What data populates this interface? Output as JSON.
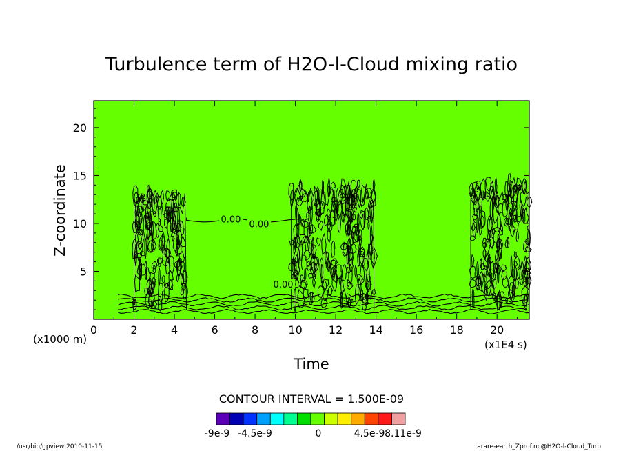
{
  "chart_data": {
    "type": "contour",
    "title": "Turbulence term of H2O-l-Cloud mixing ratio",
    "xlabel": "Time",
    "ylabel": "Z-coordinate",
    "x_unit": "(x1E4 s)",
    "y_unit": "(x1000 m)",
    "xlim": [
      0,
      21.6
    ],
    "ylim": [
      0,
      22.8
    ],
    "x_ticks": [
      0,
      2,
      4,
      6,
      8,
      10,
      12,
      14,
      16,
      18,
      20
    ],
    "y_ticks": [
      5,
      10,
      15,
      20
    ],
    "background_level": 0,
    "contour_interval_text": "CONTOUR INTERVAL = 1.500E-09",
    "contour_labels": [
      {
        "x": 6.8,
        "y": 10.4,
        "text": "0.00"
      },
      {
        "x": 8.2,
        "y": 9.9,
        "text": "0.00"
      },
      {
        "x": 9.4,
        "y": 3.6,
        "text": "0.00"
      }
    ],
    "active_regions": [
      {
        "x_start": 2.0,
        "x_end": 4.6,
        "y_top": 13.2
      },
      {
        "x_start": 9.8,
        "x_end": 13.9,
        "y_top": 14.2
      },
      {
        "x_start": 18.7,
        "x_end": 21.6,
        "y_top": 14.2
      }
    ],
    "colorbar": {
      "colors": [
        "#5b00b8",
        "#0000b4",
        "#0033ff",
        "#00a0ff",
        "#00ffff",
        "#00ff90",
        "#00e000",
        "#66ff00",
        "#ccff00",
        "#ffee00",
        "#ffaa00",
        "#ff4400",
        "#ff1a1a",
        "#f0a0a0"
      ],
      "tick_labels": [
        "-9e-9",
        "-4.5e-9",
        "0",
        "4.5e-9",
        "8.11e-9"
      ]
    }
  },
  "footer": {
    "left": "/usr/bin/gpview  2010-11-15",
    "right": "arare-earth_Zprof.nc@H2O-l-Cloud_Turb"
  },
  "colors": {
    "background_fill": "#66ff00",
    "contour_line": "#000000"
  }
}
